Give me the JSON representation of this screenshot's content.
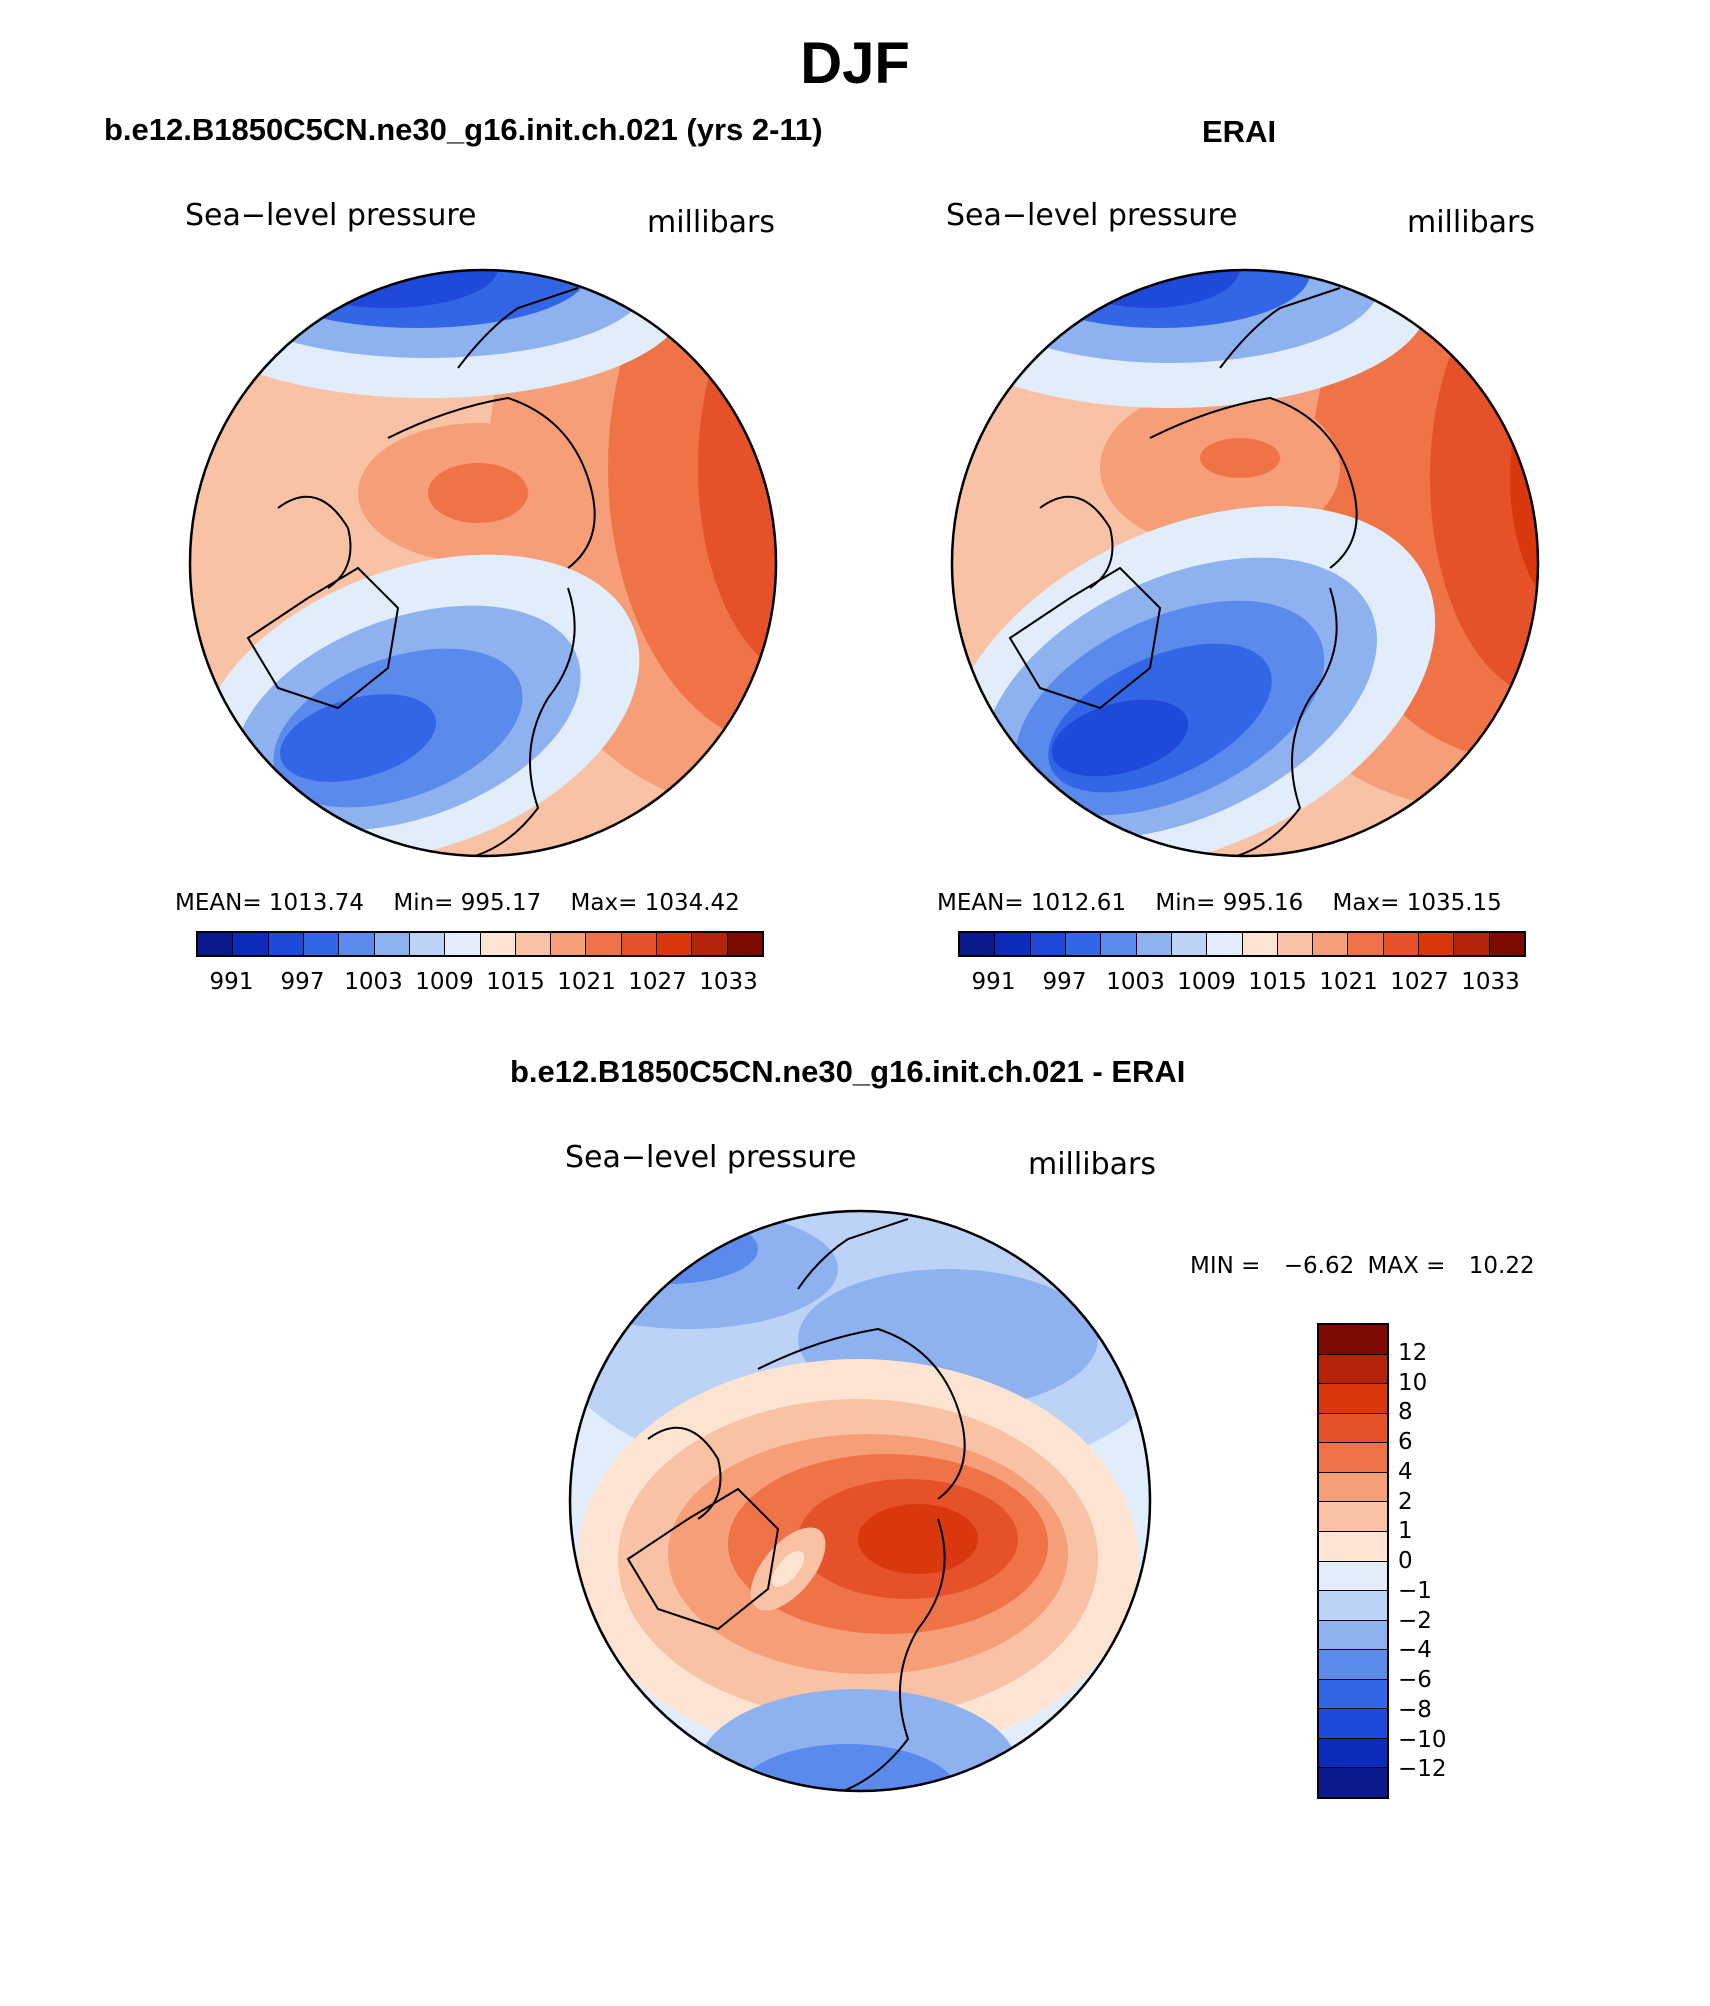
{
  "figure": {
    "title": "DJF"
  },
  "panels": [
    {
      "title": "b.e12.B1850C5CN.ne30_g16.init.ch.021 (yrs 2-11)",
      "variable": "Sea−level pressure",
      "units": "millibars",
      "stats": {
        "mean_label": "MEAN=",
        "mean": "1013.74",
        "min_label": "Min=",
        "min": "995.17",
        "max_label": "Max=",
        "max": "1034.42"
      },
      "colorbar_ticks": [
        "991",
        "997",
        "1003",
        "1009",
        "1015",
        "1021",
        "1027",
        "1033"
      ]
    },
    {
      "title": "ERAI",
      "variable": "Sea−level pressure",
      "units": "millibars",
      "stats": {
        "mean_label": "MEAN=",
        "mean": "1012.61",
        "min_label": "Min=",
        "min": "995.16",
        "max_label": "Max=",
        "max": "1035.15"
      },
      "colorbar_ticks": [
        "991",
        "997",
        "1003",
        "1009",
        "1015",
        "1021",
        "1027",
        "1033"
      ]
    },
    {
      "title": "b.e12.B1850C5CN.ne30_g16.init.ch.021 - ERAI",
      "variable": "Sea−level pressure",
      "units": "millibars",
      "stats": {
        "min_label": "MIN =",
        "min": "−6.62",
        "max_label": "MAX =",
        "max": "10.22"
      },
      "colorbar_ticks": [
        "12",
        "10",
        "8",
        "6",
        "4",
        "2",
        "1",
        "0",
        "−1",
        "−2",
        "−4",
        "−6",
        "−8",
        "−10",
        "−12"
      ]
    }
  ],
  "colors": {
    "slp_scale": [
      "#0a1a8c",
      "#0c2bb8",
      "#1f49d9",
      "#3366e6",
      "#5a8aeb",
      "#8eb1f0",
      "#bcd3f7",
      "#e1edfb",
      "#fde4d2",
      "#f9c2a5",
      "#f59e77",
      "#ef7347",
      "#e5522a",
      "#d9380f",
      "#b5240a",
      "#7d0a03"
    ],
    "diff_scale": [
      "#7d0a03",
      "#b5240a",
      "#d9380f",
      "#e5522a",
      "#ef7347",
      "#f59e77",
      "#f9c2a5",
      "#fde4d2",
      "#e1edfb",
      "#bcd3f7",
      "#8eb1f0",
      "#5a8aeb",
      "#3366e6",
      "#1f49d9",
      "#0c2bb8",
      "#0a1a8c"
    ]
  },
  "map": {
    "projection": "north polar stereographic",
    "coastlines": true
  }
}
